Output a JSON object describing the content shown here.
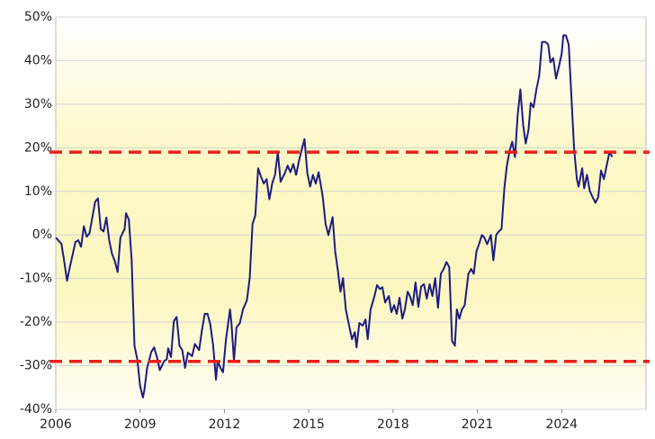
{
  "chart_data": {
    "type": "line",
    "x": [
      2006.0,
      2006.2,
      2006.3,
      2006.4,
      2006.5,
      2006.7,
      2006.8,
      2006.9,
      2007.0,
      2007.1,
      2007.2,
      2007.4,
      2007.5,
      2007.6,
      2007.7,
      2007.8,
      2007.9,
      2008.0,
      2008.1,
      2008.2,
      2008.3,
      2008.45,
      2008.5,
      2008.6,
      2008.7,
      2008.8,
      2008.9,
      2009.0,
      2009.1,
      2009.15,
      2009.25,
      2009.4,
      2009.5,
      2009.6,
      2009.7,
      2009.85,
      2009.95,
      2010.0,
      2010.1,
      2010.2,
      2010.3,
      2010.4,
      2010.5,
      2010.6,
      2010.7,
      2010.85,
      2010.95,
      2011.1,
      2011.2,
      2011.3,
      2011.4,
      2011.5,
      2011.6,
      2011.7,
      2011.76,
      2011.86,
      2011.95,
      2012.05,
      2012.2,
      2012.25,
      2012.34,
      2012.43,
      2012.55,
      2012.66,
      2012.8,
      2012.9,
      2013.0,
      2013.1,
      2013.2,
      2013.3,
      2013.4,
      2013.5,
      2013.6,
      2013.7,
      2013.8,
      2013.9,
      2014.0,
      2014.15,
      2014.25,
      2014.35,
      2014.45,
      2014.55,
      2014.65,
      2014.75,
      2014.85,
      2014.95,
      2015.05,
      2015.15,
      2015.25,
      2015.35,
      2015.45,
      2015.5,
      2015.6,
      2015.7,
      2015.85,
      2015.94,
      2016.03,
      2016.13,
      2016.22,
      2016.32,
      2016.45,
      2016.54,
      2016.64,
      2016.7,
      2016.8,
      2016.92,
      2017.02,
      2017.1,
      2017.2,
      2017.34,
      2017.43,
      2017.53,
      2017.62,
      2017.72,
      2017.85,
      2017.94,
      2018.04,
      2018.13,
      2018.23,
      2018.33,
      2018.42,
      2018.52,
      2018.6,
      2018.7,
      2018.8,
      2018.9,
      2019.0,
      2019.1,
      2019.2,
      2019.3,
      2019.4,
      2019.5,
      2019.6,
      2019.7,
      2019.8,
      2019.9,
      2020.0,
      2020.1,
      2020.2,
      2020.27,
      2020.36,
      2020.45,
      2020.55,
      2020.68,
      2020.78,
      2020.87,
      2020.97,
      2021.06,
      2021.16,
      2021.25,
      2021.35,
      2021.48,
      2021.57,
      2021.67,
      2021.76,
      2021.86,
      2021.96,
      2022.05,
      2022.15,
      2022.24,
      2022.34,
      2022.43,
      2022.53,
      2022.63,
      2022.72,
      2022.82,
      2022.9,
      2023.0,
      2023.1,
      2023.2,
      2023.3,
      2023.42,
      2023.52,
      2023.6,
      2023.7,
      2023.8,
      2023.9,
      2024.0,
      2024.06,
      2024.15,
      2024.25,
      2024.35,
      2024.44,
      2024.54,
      2024.6,
      2024.73,
      2024.8,
      2024.9,
      2025.0,
      2025.1,
      2025.2,
      2025.3,
      2025.4,
      2025.5,
      2025.6,
      2025.7,
      2025.8
    ],
    "values": [
      -0.6,
      -2,
      -6,
      -10.5,
      -7.4,
      -1.6,
      -1.2,
      -2.7,
      2,
      -0.4,
      0.4,
      7.6,
      8.4,
      1.4,
      0.8,
      4,
      -1.2,
      -4.3,
      -6,
      -8.5,
      -0.6,
      1.4,
      5,
      3.5,
      -5.8,
      -25.4,
      -28.5,
      -34.6,
      -37.3,
      -35.7,
      -30.5,
      -26.8,
      -25.8,
      -28,
      -31,
      -29,
      -28.5,
      -26,
      -28,
      -19.8,
      -18.8,
      -25.4,
      -26.4,
      -30.5,
      -27,
      -27.8,
      -25,
      -26.4,
      -21.9,
      -18.1,
      -18.1,
      -20.6,
      -25.4,
      -33.2,
      -28.9,
      -30.5,
      -31.5,
      -24.3,
      -17.1,
      -20.2,
      -28.9,
      -21.2,
      -20.2,
      -17.1,
      -15,
      -9.9,
      2.5,
      4.5,
      15.3,
      13.4,
      11.8,
      12.8,
      8.2,
      11.8,
      13.8,
      19,
      12.2,
      14.2,
      15.9,
      14.4,
      16.3,
      13.8,
      16.9,
      19.6,
      22,
      14.2,
      11.1,
      13.8,
      11.8,
      14.4,
      10.7,
      8.7,
      2.5,
      0,
      4.1,
      -3.7,
      -7.8,
      -13,
      -9.9,
      -17.1,
      -21.2,
      -23.9,
      -22.3,
      -25.8,
      -20.2,
      -20.8,
      -19.4,
      -23.9,
      -17.1,
      -14,
      -11.5,
      -12.4,
      -12,
      -15.5,
      -14,
      -17.7,
      -16.1,
      -18.1,
      -14.4,
      -19.2,
      -17.1,
      -13,
      -14,
      -16.1,
      -10.9,
      -16.5,
      -11.8,
      -11.3,
      -14.6,
      -11.3,
      -14,
      -9.9,
      -16.7,
      -8.9,
      -7.8,
      -6.2,
      -7.4,
      -24.3,
      -25.4,
      -17.1,
      -19.2,
      -17.1,
      -16.1,
      -8.9,
      -7.8,
      -8.9,
      -3.7,
      -2.1,
      0,
      -0.6,
      -2.1,
      0,
      -5.8,
      0,
      0.8,
      1.4,
      10.7,
      15.9,
      19.4,
      21.4,
      17.9,
      27.2,
      33.4,
      25.2,
      21,
      24.1,
      30.3,
      29.3,
      33.4,
      36.5,
      44.3,
      44.3,
      43.7,
      39.6,
      40.6,
      35.9,
      38.6,
      41.6,
      45.8,
      45.8,
      43.7,
      31.3,
      20,
      12.8,
      11.1,
      15.3,
      10.7,
      13.8,
      10.1,
      8.7,
      7.4,
      8.7,
      14.8,
      12.8,
      15.9,
      19,
      17.9
    ],
    "color": "#1c1c80",
    "xlim": [
      2006,
      2027
    ],
    "xticks": [
      2006,
      2009,
      2012,
      2015,
      2018,
      2021,
      2024
    ],
    "ylim": [
      -40,
      50
    ],
    "yticks": [
      {
        "value": -40,
        "label": "-40%"
      },
      {
        "value": -30,
        "label": "-30%"
      },
      {
        "value": -20,
        "label": "-20%"
      },
      {
        "value": -10,
        "label": "-10%"
      },
      {
        "value": 0,
        "label": "0%"
      },
      {
        "value": 10,
        "label": "10%"
      },
      {
        "value": 20,
        "label": "20%"
      },
      {
        "value": 30,
        "label": "30%"
      },
      {
        "value": 40,
        "label": "40%"
      },
      {
        "value": 50,
        "label": "50%"
      }
    ],
    "grid": true,
    "reference_lines": [
      {
        "value": 19,
        "color": "#e8201c"
      },
      {
        "value": -29,
        "color": "#e8201c"
      }
    ]
  }
}
